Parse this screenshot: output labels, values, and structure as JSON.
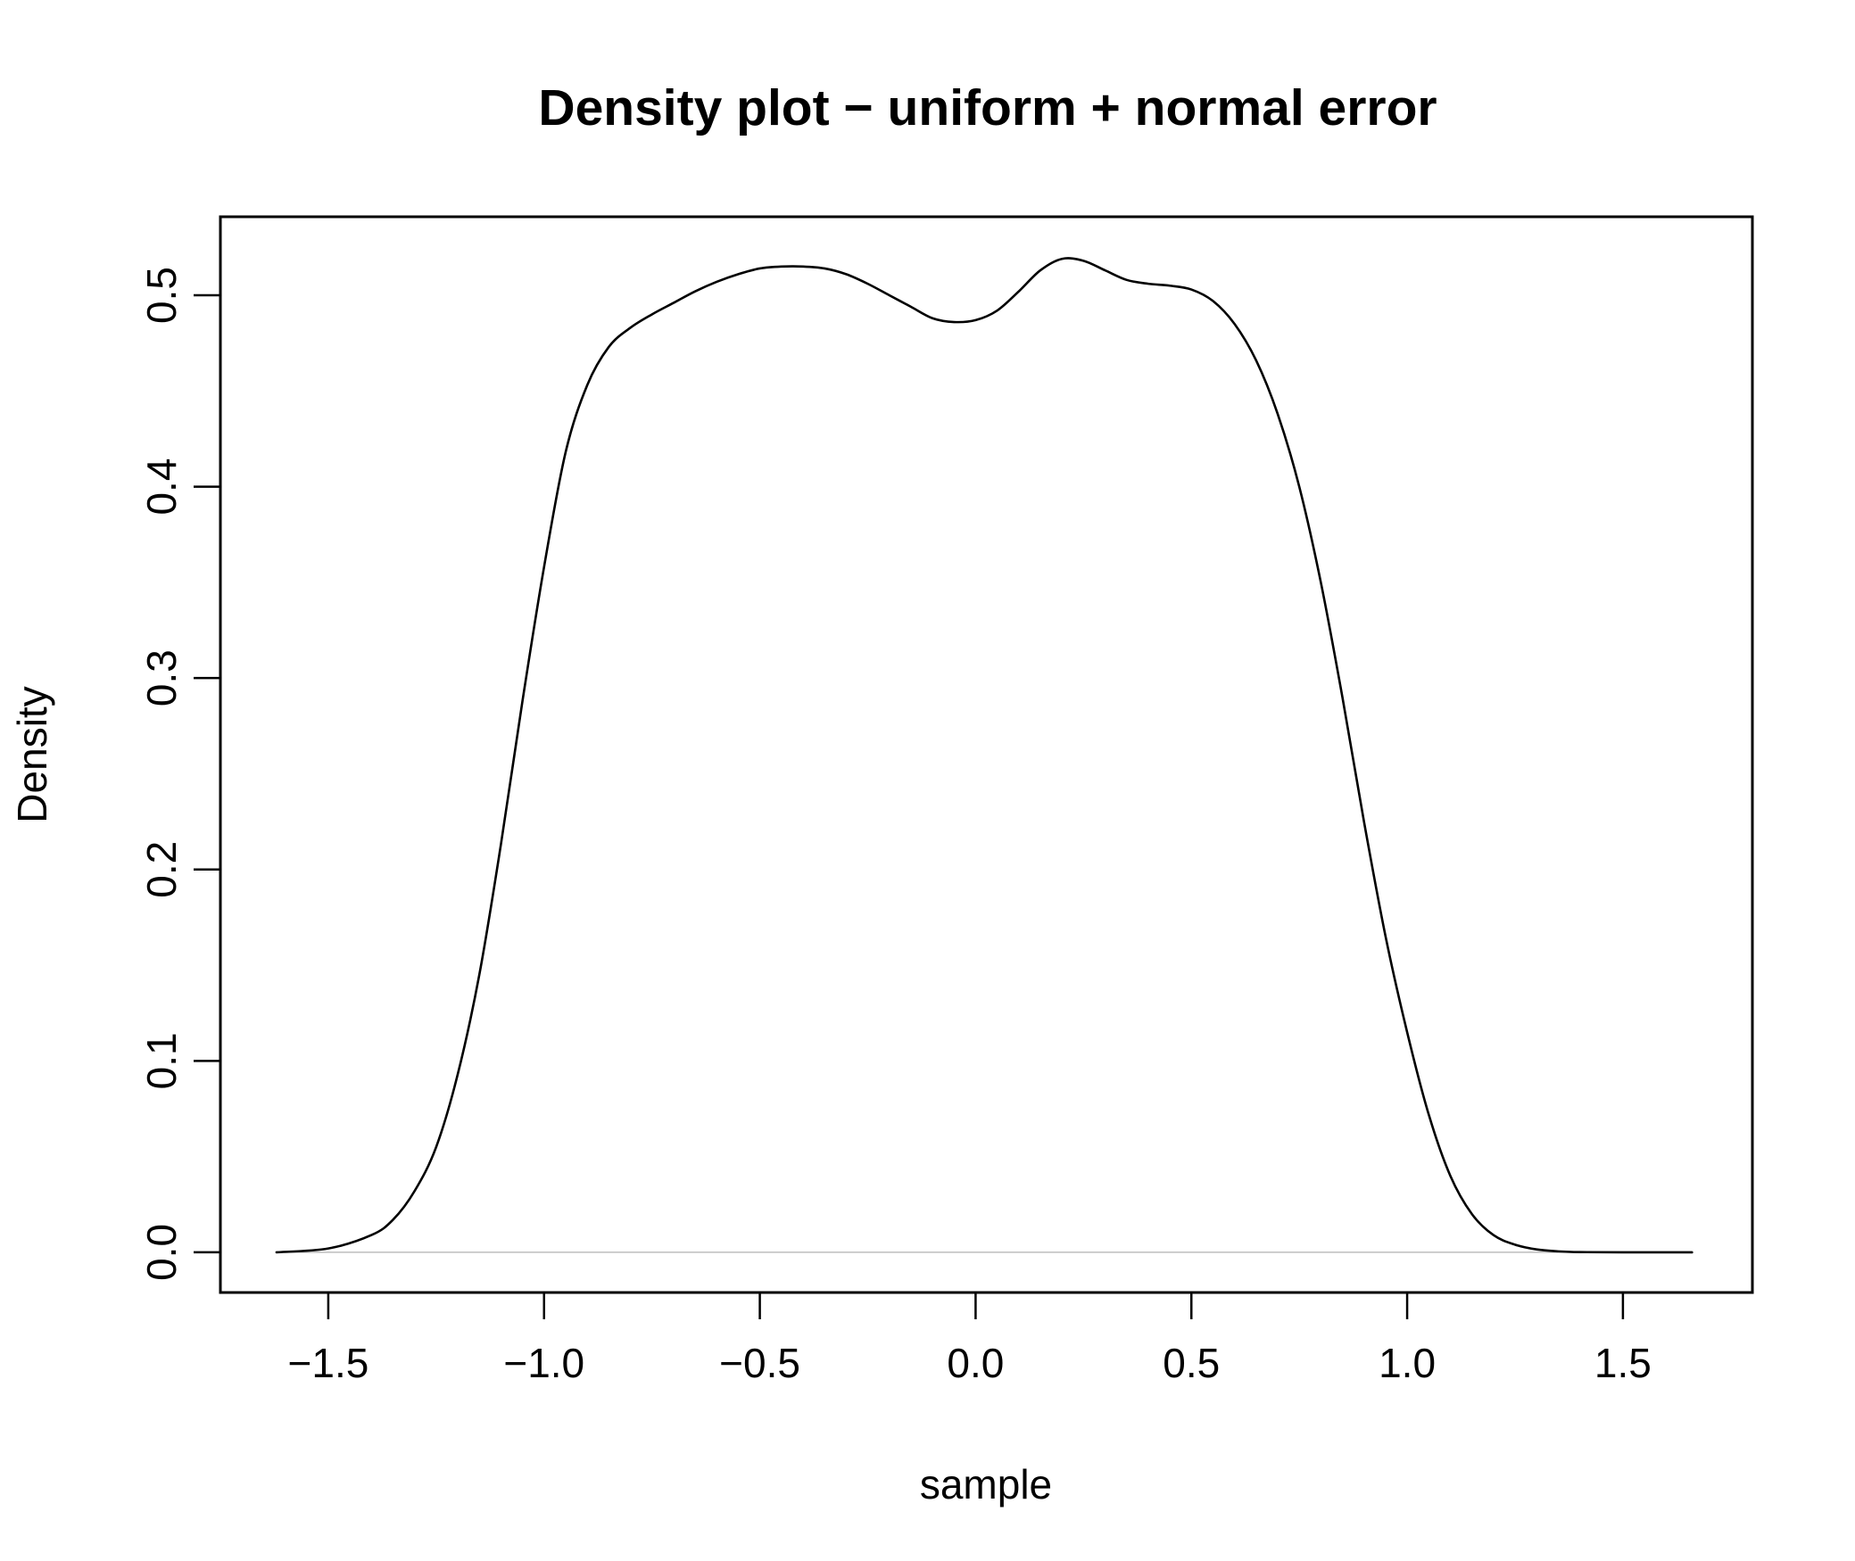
{
  "chart_data": {
    "type": "line",
    "title": "Density plot − uniform + normal error",
    "xlabel": "sample",
    "ylabel": "Density",
    "xlim": [
      -1.75,
      1.8
    ],
    "ylim": [
      -0.021,
      0.541
    ],
    "x_ticks": [
      -1.5,
      -1.0,
      -0.5,
      0.0,
      0.5,
      1.0,
      1.5
    ],
    "x_tick_labels": [
      "−1.5",
      "−1.0",
      "−0.5",
      "0.0",
      "0.5",
      "1.0",
      "1.5"
    ],
    "y_ticks": [
      0.0,
      0.1,
      0.2,
      0.3,
      0.4,
      0.5
    ],
    "y_tick_labels": [
      "0.0",
      "0.1",
      "0.2",
      "0.3",
      "0.4",
      "0.5"
    ],
    "baseline": 0.0,
    "baseline_color": "#bebebe",
    "line_color": "#000000",
    "grid": false,
    "legend": "none",
    "series": [
      {
        "x": [
          -1.62,
          -1.5,
          -1.4,
          -1.35,
          -1.3,
          -1.25,
          -1.2,
          -1.15,
          -1.1,
          -1.05,
          -1.0,
          -0.95,
          -0.9,
          -0.85,
          -0.8,
          -0.75,
          -0.7,
          -0.65,
          -0.6,
          -0.55,
          -0.5,
          -0.45,
          -0.4,
          -0.35,
          -0.3,
          -0.25,
          -0.2,
          -0.15,
          -0.1,
          -0.05,
          0.0,
          0.05,
          0.1,
          0.15,
          0.2,
          0.25,
          0.3,
          0.35,
          0.4,
          0.45,
          0.5,
          0.55,
          0.6,
          0.65,
          0.7,
          0.75,
          0.8,
          0.85,
          0.9,
          0.95,
          1.0,
          1.05,
          1.1,
          1.15,
          1.2,
          1.25,
          1.3,
          1.35,
          1.4,
          1.5,
          1.66
        ],
        "values": [
          0.0,
          0.002,
          0.009,
          0.017,
          0.032,
          0.055,
          0.093,
          0.145,
          0.213,
          0.288,
          0.358,
          0.418,
          0.453,
          0.473,
          0.483,
          0.49,
          0.496,
          0.502,
          0.507,
          0.511,
          0.514,
          0.515,
          0.515,
          0.514,
          0.511,
          0.506,
          0.5,
          0.494,
          0.488,
          0.486,
          0.487,
          0.492,
          0.502,
          0.513,
          0.519,
          0.518,
          0.513,
          0.508,
          0.506,
          0.505,
          0.503,
          0.497,
          0.485,
          0.466,
          0.438,
          0.4,
          0.35,
          0.29,
          0.225,
          0.165,
          0.115,
          0.072,
          0.04,
          0.02,
          0.009,
          0.004,
          0.0015,
          0.0005,
          0.0001,
          0.0,
          0.0
        ]
      }
    ]
  }
}
